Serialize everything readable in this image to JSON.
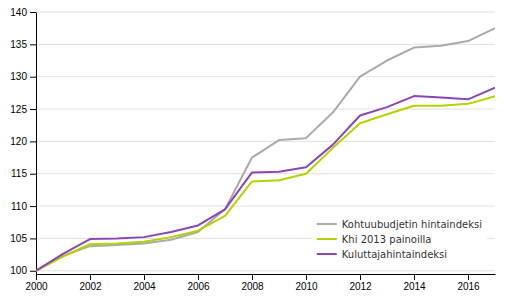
{
  "chart_data": {
    "type": "line",
    "x": [
      2000,
      2001,
      2002,
      2003,
      2004,
      2005,
      2006,
      2007,
      2008,
      2009,
      2010,
      2011,
      2012,
      2013,
      2014,
      2015,
      2016,
      2017
    ],
    "series": [
      {
        "name": "Kohtuubudjetin hintaindeksi",
        "color": "#aaaaaa",
        "values": [
          100,
          102.3,
          103.8,
          104.0,
          104.2,
          104.8,
          106.0,
          109.5,
          117.5,
          120.2,
          120.5,
          124.5,
          130.0,
          132.5,
          134.5,
          134.8,
          135.5,
          137.5
        ]
      },
      {
        "name": "Khi 2013 painoilla",
        "color": "#b5d100",
        "values": [
          100,
          102.2,
          104.1,
          104.2,
          104.5,
          105.2,
          106.2,
          108.5,
          113.8,
          114.0,
          115.0,
          119.0,
          122.8,
          124.2,
          125.5,
          125.5,
          125.8,
          127.0
        ]
      },
      {
        "name": "Kuluttajahintaindeksi",
        "color": "#8b45b5",
        "values": [
          100,
          102.6,
          104.9,
          105.0,
          105.2,
          106.0,
          107.0,
          109.5,
          115.2,
          115.3,
          116.0,
          119.5,
          124.0,
          125.3,
          127.0,
          126.8,
          126.5,
          128.3
        ]
      }
    ],
    "xlim": [
      2000,
      2017
    ],
    "xticks": [
      2000,
      2002,
      2004,
      2006,
      2008,
      2010,
      2012,
      2014,
      2016
    ],
    "ylim": [
      99.5,
      140
    ],
    "yticks": [
      100,
      105,
      110,
      115,
      120,
      125,
      130,
      135,
      140
    ],
    "grid": true,
    "legend": "lower right"
  }
}
